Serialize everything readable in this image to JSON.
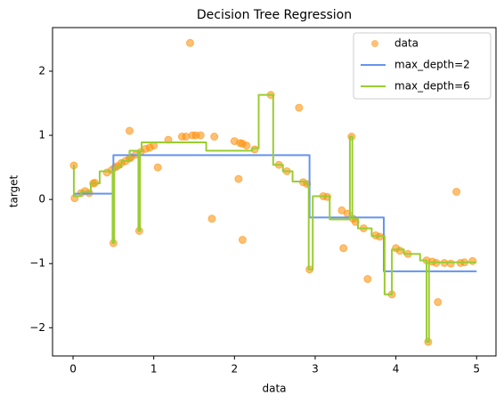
{
  "chart_data": {
    "type": "line",
    "title": "Decision Tree Regression",
    "x_label": "data",
    "y_label": "target",
    "xlim": [
      -0.254,
      5.24
    ],
    "ylim": [
      -2.44,
      2.68
    ],
    "xticks": [
      0,
      1,
      2,
      3,
      4,
      5
    ],
    "yticks": [
      {
        "value": -2,
        "label": "−2"
      },
      {
        "value": -1,
        "label": "−1"
      },
      0,
      1,
      2
    ],
    "legend": "upper right",
    "series": [
      {
        "name": "data",
        "kind": "scatter",
        "color": "darkorange",
        "x": [
          0.01,
          0.02,
          0.1,
          0.15,
          0.2,
          0.25,
          0.27,
          0.42,
          0.48,
          0.5,
          0.52,
          0.55,
          0.6,
          0.65,
          0.7,
          0.7,
          0.72,
          0.78,
          0.82,
          0.84,
          0.9,
          0.95,
          1.0,
          1.05,
          1.18,
          1.35,
          1.4,
          1.45,
          1.48,
          1.52,
          1.58,
          1.72,
          1.75,
          2.0,
          2.05,
          2.07,
          2.1,
          2.1,
          2.15,
          2.25,
          2.45,
          2.55,
          2.65,
          2.8,
          2.85,
          2.9,
          2.93,
          3.1,
          3.15,
          3.33,
          3.35,
          3.4,
          3.45,
          3.47,
          3.5,
          3.6,
          3.65,
          3.75,
          3.8,
          3.95,
          4.0,
          4.05,
          4.15,
          4.38,
          4.4,
          4.45,
          4.5,
          4.52,
          4.6,
          4.68,
          4.75,
          4.8,
          4.85,
          4.95
        ],
        "values": [
          0.53,
          0.02,
          0.1,
          0.13,
          0.1,
          0.25,
          0.26,
          0.42,
          0.46,
          -0.68,
          0.5,
          0.52,
          0.57,
          0.6,
          0.64,
          1.07,
          0.66,
          0.7,
          -0.49,
          0.74,
          0.79,
          0.81,
          0.84,
          0.5,
          0.93,
          0.98,
          0.98,
          2.44,
          1.0,
          1.0,
          1.0,
          -0.3,
          0.98,
          0.91,
          0.32,
          0.88,
          0.87,
          -0.63,
          0.84,
          0.78,
          1.63,
          0.54,
          0.44,
          1.43,
          0.27,
          0.24,
          -1.09,
          0.05,
          0.04,
          -0.17,
          -0.76,
          -0.22,
          0.98,
          -0.3,
          -0.35,
          -0.45,
          -1.24,
          -0.56,
          -0.58,
          -1.48,
          -0.76,
          -0.8,
          -0.85,
          -0.95,
          -2.22,
          -0.97,
          -0.99,
          -1.6,
          -0.99,
          -1.0,
          0.12,
          -0.99,
          -0.98,
          -0.96
        ]
      },
      {
        "name": "max_depth=2",
        "kind": "line",
        "color": "cornflowerblue",
        "x": [
          0,
          0.5,
          0.5,
          2.93,
          2.93,
          3.85,
          3.85,
          5
        ],
        "values": [
          0.09,
          0.09,
          0.69,
          0.69,
          -0.28,
          -0.28,
          -1.12,
          -1.12
        ]
      },
      {
        "name": "max_depth=6",
        "kind": "line",
        "color": "yellowgreen",
        "x": [
          0,
          0.01,
          0.01,
          0.1,
          0.1,
          0.22,
          0.22,
          0.33,
          0.33,
          0.49,
          0.49,
          0.51,
          0.51,
          0.6,
          0.6,
          0.7,
          0.7,
          0.81,
          0.81,
          0.83,
          0.83,
          0.85,
          0.85,
          1.65,
          1.65,
          2.22,
          2.22,
          2.3,
          2.3,
          2.48,
          2.48,
          2.6,
          2.6,
          2.72,
          2.72,
          2.9,
          2.9,
          2.92,
          2.92,
          2.97,
          2.97,
          3.18,
          3.18,
          3.43,
          3.43,
          3.46,
          3.46,
          3.53,
          3.53,
          3.7,
          3.7,
          3.86,
          3.86,
          3.95,
          3.95,
          4.1,
          4.1,
          4.3,
          4.3,
          4.38,
          4.38,
          4.41,
          4.41,
          5
        ],
        "values": [
          0.53,
          0.53,
          0.05,
          0.05,
          0.12,
          0.12,
          0.25,
          0.25,
          0.44,
          0.44,
          -0.68,
          -0.68,
          0.5,
          0.5,
          0.6,
          0.6,
          0.76,
          0.76,
          -0.49,
          -0.49,
          0.75,
          0.75,
          0.89,
          0.89,
          0.76,
          0.76,
          0.8,
          0.8,
          1.63,
          1.63,
          0.54,
          0.54,
          0.44,
          0.44,
          0.28,
          0.28,
          0.22,
          0.22,
          -1.09,
          -1.09,
          0.05,
          0.05,
          -0.31,
          -0.31,
          0.98,
          0.98,
          -0.3,
          -0.3,
          -0.45,
          -0.45,
          -0.57,
          -0.57,
          -1.48,
          -1.48,
          -0.78,
          -0.78,
          -0.85,
          -0.85,
          -0.95,
          -0.95,
          -2.22,
          -2.22,
          -0.98,
          -0.98
        ]
      }
    ]
  }
}
